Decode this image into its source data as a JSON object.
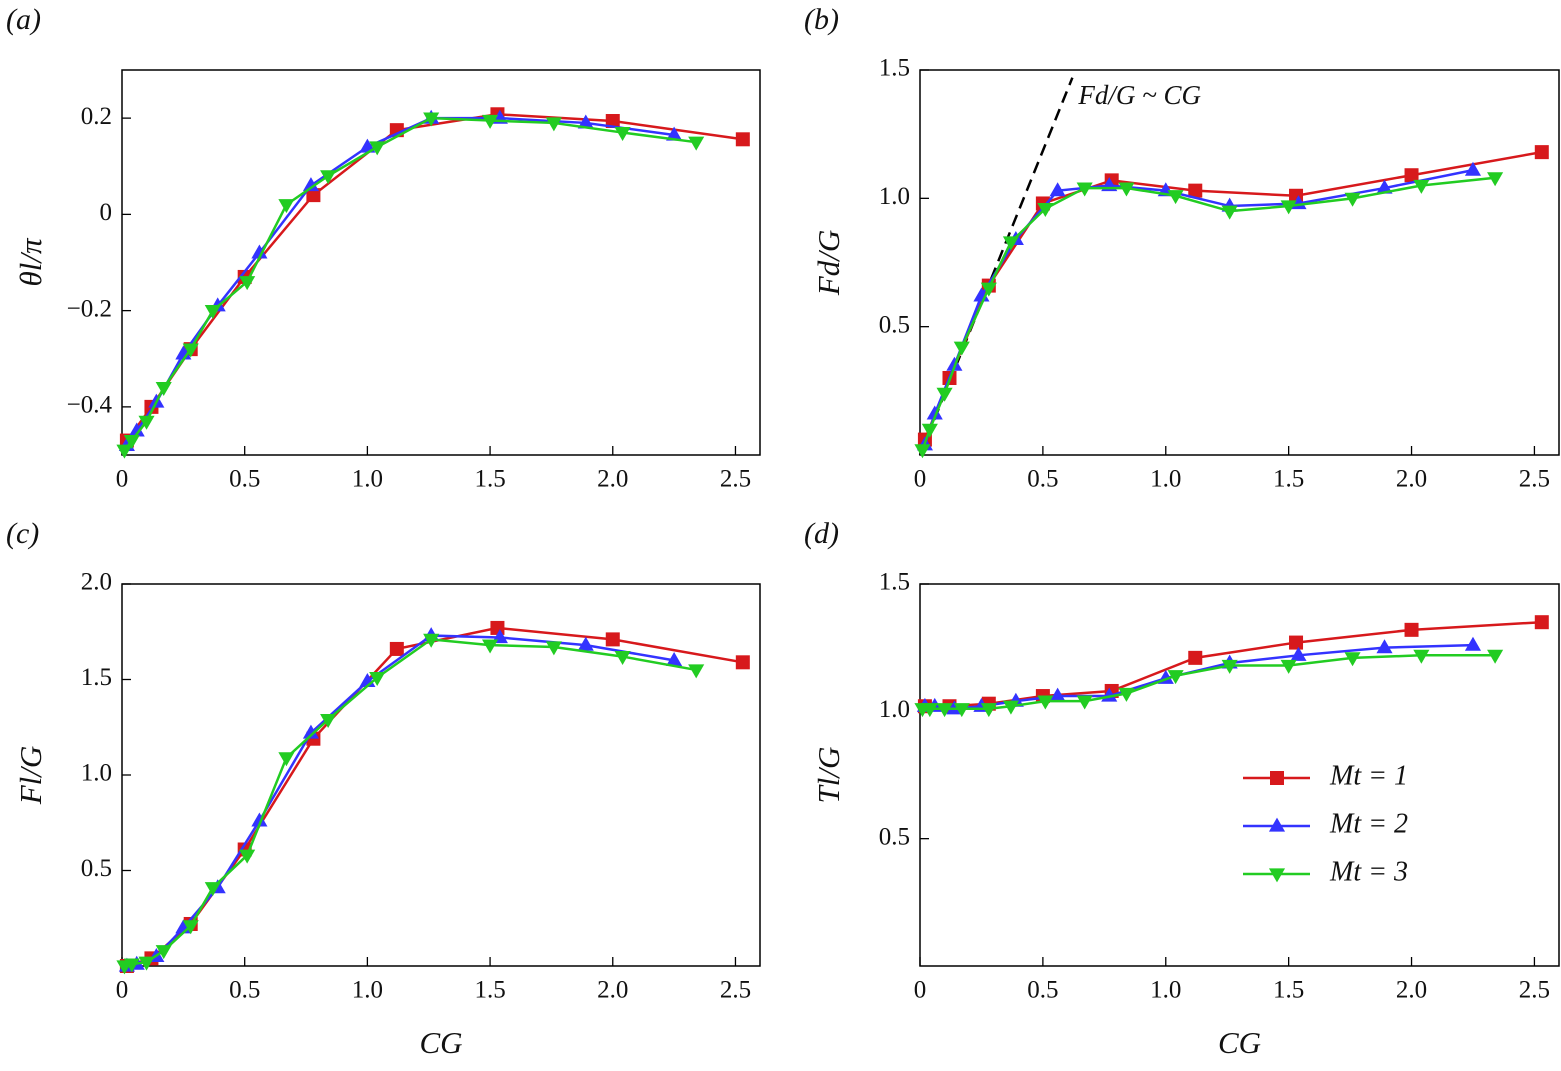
{
  "chart_data": [
    {
      "type": "line",
      "panel": "(a)",
      "ylabel": "θl/π",
      "xlim": [
        0,
        2.6
      ],
      "ylim": [
        -0.5,
        0.3
      ],
      "xticks": [
        0,
        0.5,
        {
          "value": 1,
          "label": "1.0"
        },
        1.5,
        {
          "value": 2,
          "label": "2.0"
        },
        2.5
      ],
      "yticks": [
        {
          "value": -0.4,
          "label": "−0.4"
        },
        {
          "value": -0.2,
          "label": "−0.2"
        },
        0,
        0.2
      ],
      "series": [
        {
          "color": "#d7191c",
          "marker": "square",
          "x": [
            0.02,
            0.12,
            0.28,
            0.5,
            0.78,
            1.12,
            1.53,
            2.0,
            2.53
          ],
          "values": [
            -0.47,
            -0.4,
            -0.28,
            -0.13,
            0.04,
            0.175,
            0.208,
            0.194,
            0.156
          ]
        },
        {
          "color": "#3333ff",
          "marker": "triangle-up",
          "x": [
            0.02,
            0.06,
            0.14,
            0.25,
            0.39,
            0.56,
            0.77,
            1.0,
            1.26,
            1.54,
            1.89,
            2.25
          ],
          "values": [
            -0.48,
            -0.45,
            -0.39,
            -0.29,
            -0.19,
            -0.08,
            0.06,
            0.14,
            0.2,
            0.2,
            0.19,
            0.165
          ]
        },
        {
          "color": "#22cc22",
          "marker": "triangle-down",
          "x": [
            0.01,
            0.04,
            0.1,
            0.17,
            0.28,
            0.37,
            0.51,
            0.67,
            0.84,
            1.04,
            1.26,
            1.5,
            1.76,
            2.04,
            2.34
          ],
          "values": [
            -0.49,
            -0.47,
            -0.43,
            -0.36,
            -0.28,
            -0.2,
            -0.14,
            0.02,
            0.08,
            0.14,
            0.2,
            0.195,
            0.19,
            0.17,
            0.15
          ]
        }
      ]
    },
    {
      "type": "line",
      "panel": "(b)",
      "ylabel": "Fd/G",
      "xlim": [
        0,
        2.6
      ],
      "ylim": [
        0,
        1.5
      ],
      "xticks": [
        0,
        0.5,
        {
          "value": 1,
          "label": "1.0"
        },
        1.5,
        {
          "value": 2,
          "label": "2.0"
        },
        2.5
      ],
      "yticks": [
        0.5,
        {
          "value": 1,
          "label": "1.0"
        },
        1.5
      ],
      "reference": {
        "x": [
          0,
          0.62
        ],
        "y": [
          0,
          1.47
        ],
        "dashed": true,
        "annotation": "Fd/G ~ CG"
      },
      "series": [
        {
          "color": "#d7191c",
          "marker": "square",
          "x": [
            0.02,
            0.12,
            0.28,
            0.5,
            0.78,
            1.12,
            1.53,
            2.0,
            2.53
          ],
          "values": [
            0.06,
            0.3,
            0.66,
            0.98,
            1.07,
            1.03,
            1.01,
            1.09,
            1.18
          ]
        },
        {
          "color": "#3333ff",
          "marker": "triangle-up",
          "x": [
            0.02,
            0.06,
            0.14,
            0.25,
            0.39,
            0.56,
            0.77,
            1.0,
            1.26,
            1.54,
            1.89,
            2.25
          ],
          "values": [
            0.04,
            0.16,
            0.35,
            0.62,
            0.84,
            1.03,
            1.05,
            1.03,
            0.97,
            0.98,
            1.04,
            1.11
          ]
        },
        {
          "color": "#22cc22",
          "marker": "triangle-down",
          "x": [
            0.01,
            0.04,
            0.1,
            0.17,
            0.28,
            0.37,
            0.51,
            0.67,
            0.84,
            1.04,
            1.26,
            1.5,
            1.76,
            2.04,
            2.34
          ],
          "values": [
            0.02,
            0.1,
            0.24,
            0.42,
            0.65,
            0.83,
            0.96,
            1.04,
            1.04,
            1.01,
            0.95,
            0.97,
            1.0,
            1.05,
            1.08
          ]
        }
      ]
    },
    {
      "type": "line",
      "panel": "(c)",
      "ylabel": "Fl/G",
      "xlabel": "CG",
      "xlim": [
        0,
        2.6
      ],
      "ylim": [
        0,
        2.0
      ],
      "xticks": [
        0,
        0.5,
        {
          "value": 1,
          "label": "1.0"
        },
        1.5,
        {
          "value": 2,
          "label": "2.0"
        },
        2.5
      ],
      "yticks": [
        0.5,
        {
          "value": 1,
          "label": "1.0"
        },
        1.5,
        {
          "value": 2,
          "label": "2.0"
        }
      ],
      "series": [
        {
          "color": "#d7191c",
          "marker": "square",
          "x": [
            0.02,
            0.12,
            0.28,
            0.5,
            0.78,
            1.12,
            1.53,
            2.0,
            2.53
          ],
          "values": [
            0.0,
            0.04,
            0.22,
            0.61,
            1.19,
            1.66,
            1.77,
            1.71,
            1.59
          ]
        },
        {
          "color": "#3333ff",
          "marker": "triangle-up",
          "x": [
            0.02,
            0.06,
            0.14,
            0.25,
            0.39,
            0.56,
            0.77,
            1.0,
            1.26,
            1.54,
            1.89,
            2.25
          ],
          "values": [
            0.0,
            0.01,
            0.05,
            0.2,
            0.41,
            0.76,
            1.22,
            1.49,
            1.73,
            1.72,
            1.68,
            1.6
          ]
        },
        {
          "color": "#22cc22",
          "marker": "triangle-down",
          "x": [
            0.01,
            0.04,
            0.1,
            0.17,
            0.28,
            0.37,
            0.51,
            0.67,
            0.84,
            1.04,
            1.26,
            1.5,
            1.76,
            2.04,
            2.34
          ],
          "values": [
            0.0,
            0.01,
            0.02,
            0.08,
            0.21,
            0.41,
            0.58,
            1.09,
            1.29,
            1.51,
            1.71,
            1.68,
            1.67,
            1.62,
            1.55
          ]
        }
      ]
    },
    {
      "type": "line",
      "panel": "(d)",
      "ylabel": "Tl/G",
      "xlabel": "CG",
      "legend": "lower right",
      "xlim": [
        0,
        2.6
      ],
      "ylim": [
        0,
        1.5
      ],
      "xticks": [
        0,
        0.5,
        {
          "value": 1,
          "label": "1.0"
        },
        1.5,
        {
          "value": 2,
          "label": "2.0"
        },
        2.5
      ],
      "yticks": [
        0.5,
        {
          "value": 1,
          "label": "1.0"
        },
        1.5
      ],
      "series": [
        {
          "name": "Mt = 1",
          "color": "#d7191c",
          "marker": "square",
          "x": [
            0.02,
            0.12,
            0.28,
            0.5,
            0.78,
            1.12,
            1.53,
            2.0,
            2.53
          ],
          "values": [
            1.02,
            1.02,
            1.03,
            1.06,
            1.08,
            1.21,
            1.27,
            1.32,
            1.35
          ]
        },
        {
          "name": "Mt = 2",
          "color": "#3333ff",
          "marker": "triangle-up",
          "x": [
            0.02,
            0.06,
            0.14,
            0.25,
            0.39,
            0.56,
            0.77,
            1.0,
            1.26,
            1.54,
            1.89,
            2.25
          ],
          "values": [
            1.02,
            1.02,
            1.01,
            1.02,
            1.04,
            1.06,
            1.06,
            1.13,
            1.19,
            1.22,
            1.25,
            1.26
          ]
        },
        {
          "name": "Mt = 3",
          "color": "#22cc22",
          "marker": "triangle-down",
          "x": [
            0.01,
            0.04,
            0.1,
            0.17,
            0.28,
            0.37,
            0.51,
            0.67,
            0.84,
            1.04,
            1.26,
            1.5,
            1.76,
            2.04,
            2.34
          ],
          "values": [
            1.01,
            1.01,
            1.01,
            1.01,
            1.01,
            1.02,
            1.04,
            1.04,
            1.07,
            1.14,
            1.18,
            1.18,
            1.21,
            1.22,
            1.22
          ]
        }
      ]
    }
  ]
}
